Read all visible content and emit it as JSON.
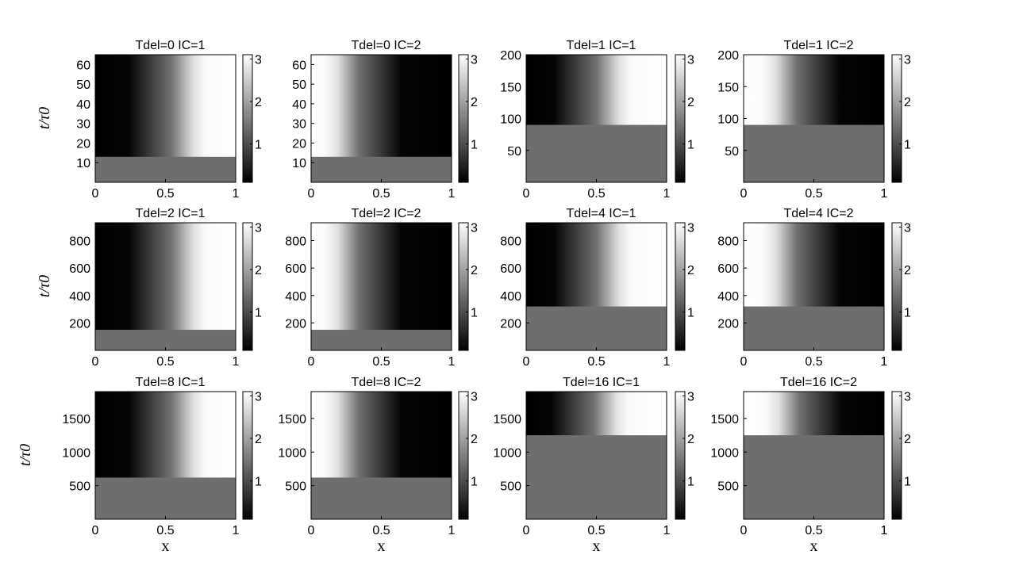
{
  "chart_data": {
    "type": "heatmap",
    "colormap": "gray",
    "xlabel": "x",
    "ylabel": "t/τ0",
    "xlim": [
      0,
      1
    ],
    "x_ticks": [
      "0",
      "0.5",
      "1"
    ],
    "colorbar_ticks": [
      "1",
      "2",
      "3"
    ],
    "panels": [
      {
        "title": "Tdel=0 IC=1",
        "ylim": [
          0,
          65
        ],
        "y_ticks": [
          "10",
          "20",
          "30",
          "40",
          "50",
          "60"
        ],
        "transition_t": 13,
        "front_x": 0.66,
        "ic": 1
      },
      {
        "title": "Tdel=0 IC=2",
        "ylim": [
          0,
          65
        ],
        "y_ticks": [
          "10",
          "20",
          "30",
          "40",
          "50",
          "60"
        ],
        "transition_t": 13,
        "front_x": 0.22,
        "ic": 2
      },
      {
        "title": "Tdel=1 IC=1",
        "ylim": [
          0,
          200
        ],
        "y_ticks": [
          "50",
          "100",
          "150",
          "200"
        ],
        "transition_t": 90,
        "front_x": 0.62,
        "ic": 1
      },
      {
        "title": "Tdel=1 IC=2",
        "ylim": [
          0,
          200
        ],
        "y_ticks": [
          "50",
          "100",
          "150",
          "200"
        ],
        "transition_t": 90,
        "front_x": 0.26,
        "ic": 2
      },
      {
        "title": "Tdel=2 IC=1",
        "ylim": [
          0,
          930
        ],
        "y_ticks": [
          "200",
          "400",
          "600",
          "800"
        ],
        "transition_t": 150,
        "front_x": 0.66,
        "ic": 1
      },
      {
        "title": "Tdel=2 IC=2",
        "ylim": [
          0,
          930
        ],
        "y_ticks": [
          "200",
          "400",
          "600",
          "800"
        ],
        "transition_t": 150,
        "front_x": 0.22,
        "ic": 2
      },
      {
        "title": "Tdel=4 IC=1",
        "ylim": [
          0,
          930
        ],
        "y_ticks": [
          "200",
          "400",
          "600",
          "800"
        ],
        "transition_t": 320,
        "front_x": 0.62,
        "ic": 1
      },
      {
        "title": "Tdel=4 IC=2",
        "ylim": [
          0,
          930
        ],
        "y_ticks": [
          "200",
          "400",
          "600",
          "800"
        ],
        "transition_t": 320,
        "front_x": 0.26,
        "ic": 2
      },
      {
        "title": "Tdel=8 IC=1",
        "ylim": [
          0,
          1900
        ],
        "y_ticks": [
          "500",
          "1000",
          "1500"
        ],
        "transition_t": 620,
        "front_x": 0.66,
        "ic": 1
      },
      {
        "title": "Tdel=8 IC=2",
        "ylim": [
          0,
          1900
        ],
        "y_ticks": [
          "500",
          "1000",
          "1500"
        ],
        "transition_t": 620,
        "front_x": 0.22,
        "ic": 2
      },
      {
        "title": "Tdel=16 IC=1",
        "ylim": [
          0,
          1900
        ],
        "y_ticks": [
          "500",
          "1000",
          "1500"
        ],
        "transition_t": 1250,
        "front_x": 0.6,
        "ic": 1
      },
      {
        "title": "Tdel=16 IC=2",
        "ylim": [
          0,
          1900
        ],
        "y_ticks": [
          "500",
          "1000",
          "1500"
        ],
        "transition_t": 1250,
        "front_x": 0.28,
        "ic": 2
      }
    ]
  }
}
